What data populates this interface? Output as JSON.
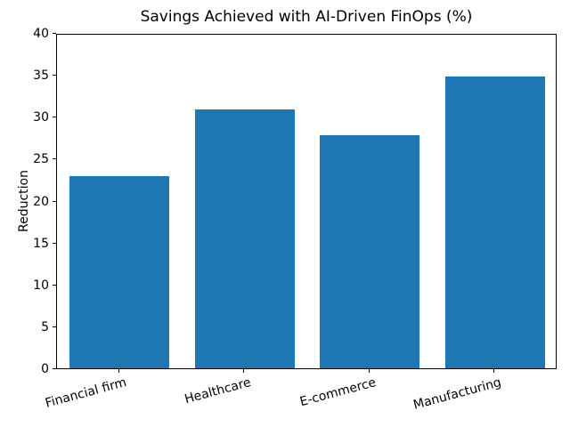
{
  "figure": {
    "background": "#ffffff",
    "bar_color": "#1f77b4",
    "axis_color": "#000000",
    "text_color": "#000000"
  },
  "chart_data": {
    "type": "bar",
    "title": "Savings Achieved with AI-Driven FinOps (%)",
    "xlabel": "",
    "ylabel": "Reduction",
    "categories": [
      "Financial firm",
      "Healthcare",
      "E-commerce",
      "Manufacturing"
    ],
    "values": [
      23,
      31,
      28,
      35
    ],
    "ylim": [
      0,
      40
    ],
    "yticks": [
      0,
      5,
      10,
      15,
      20,
      25,
      30,
      35,
      40
    ],
    "bar_width_fraction": 0.8,
    "xtick_rotation_deg": 15,
    "grid": false,
    "legend": "none"
  }
}
